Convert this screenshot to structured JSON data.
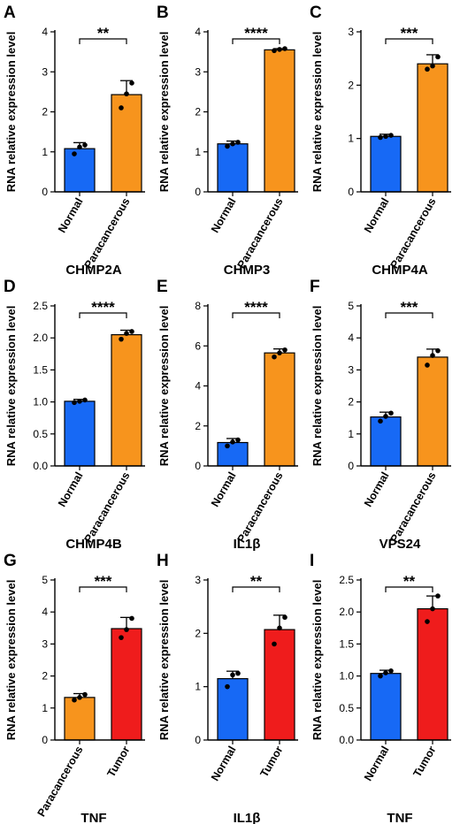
{
  "colors": {
    "Normal": "#1769f5",
    "Paracancerous": "#f7941d",
    "Tumor": "#ef1c1c"
  },
  "chart_data": [
    {
      "letter": "A",
      "type": "bar",
      "title": "CHMP2A",
      "ylabel": "RNA relative expression level",
      "ylim": [
        0,
        4
      ],
      "yticks": [
        0,
        1,
        2,
        3,
        4
      ],
      "tick_decimals": 0,
      "categories": [
        "Normal",
        "Paracancerous"
      ],
      "values": [
        1.08,
        2.43
      ],
      "errors": [
        0.15,
        0.35
      ],
      "points": [
        [
          0.95,
          1.12,
          1.17
        ],
        [
          2.1,
          2.45,
          2.72
        ]
      ],
      "significance": "**"
    },
    {
      "letter": "B",
      "type": "bar",
      "title": "CHMP3",
      "ylabel": "RNA relative expression level",
      "ylim": [
        0,
        4
      ],
      "yticks": [
        0,
        1,
        2,
        3,
        4
      ],
      "tick_decimals": 0,
      "categories": [
        "Normal",
        "Paracancerous"
      ],
      "values": [
        1.2,
        3.55
      ],
      "errors": [
        0.07,
        0.03
      ],
      "points": [
        [
          1.14,
          1.2,
          1.24
        ],
        [
          3.53,
          3.56,
          3.58
        ]
      ],
      "significance": "****"
    },
    {
      "letter": "C",
      "type": "bar",
      "title": "CHMP4A",
      "ylabel": "RNA relative expression level",
      "ylim": [
        0,
        3
      ],
      "yticks": [
        0,
        1,
        2,
        3
      ],
      "tick_decimals": 0,
      "categories": [
        "Normal",
        "Paracancerous"
      ],
      "values": [
        1.04,
        2.4
      ],
      "errors": [
        0.04,
        0.17
      ],
      "points": [
        [
          1.02,
          1.04,
          1.06
        ],
        [
          2.3,
          2.36,
          2.53
        ]
      ],
      "significance": "***"
    },
    {
      "letter": "D",
      "type": "bar",
      "title": "CHMP4B",
      "ylabel": "RNA relative expression level",
      "ylim": [
        0,
        2.5
      ],
      "yticks": [
        0,
        0.5,
        1.0,
        1.5,
        2.0,
        2.5
      ],
      "tick_decimals": 1,
      "categories": [
        "Normal",
        "Paracancerous"
      ],
      "values": [
        1.01,
        2.05
      ],
      "errors": [
        0.03,
        0.07
      ],
      "points": [
        [
          0.99,
          1.01,
          1.03
        ],
        [
          1.98,
          2.07,
          2.1
        ]
      ],
      "significance": "****"
    },
    {
      "letter": "E",
      "type": "bar",
      "title": "IL1β",
      "ylabel": "RNA relative expression level",
      "ylim": [
        0,
        8
      ],
      "yticks": [
        0,
        2,
        4,
        6,
        8
      ],
      "tick_decimals": 0,
      "categories": [
        "Normal",
        "Paracancerous"
      ],
      "values": [
        1.17,
        5.65
      ],
      "errors": [
        0.2,
        0.2
      ],
      "points": [
        [
          1.0,
          1.2,
          1.3
        ],
        [
          5.45,
          5.65,
          5.8
        ]
      ],
      "significance": "****"
    },
    {
      "letter": "F",
      "type": "bar",
      "title": "VPS24",
      "ylabel": "RNA relative expression level",
      "ylim": [
        0,
        5
      ],
      "yticks": [
        0,
        1,
        2,
        3,
        4,
        5
      ],
      "tick_decimals": 0,
      "categories": [
        "Normal",
        "Paracancerous"
      ],
      "values": [
        1.53,
        3.4
      ],
      "errors": [
        0.15,
        0.25
      ],
      "points": [
        [
          1.4,
          1.55,
          1.65
        ],
        [
          3.15,
          3.45,
          3.6
        ]
      ],
      "significance": "***"
    },
    {
      "letter": "G",
      "type": "bar",
      "title": "TNF",
      "ylabel": "RNA relative expression level",
      "ylim": [
        0,
        5
      ],
      "yticks": [
        0,
        1,
        2,
        3,
        4,
        5
      ],
      "tick_decimals": 0,
      "categories": [
        "Paracancerous",
        "Tumor"
      ],
      "values": [
        1.33,
        3.48
      ],
      "errors": [
        0.12,
        0.35
      ],
      "points": [
        [
          1.25,
          1.33,
          1.42
        ],
        [
          3.2,
          3.45,
          3.8
        ]
      ],
      "significance": "***"
    },
    {
      "letter": "H",
      "type": "bar",
      "title": "IL1β",
      "ylabel": "RNA relative expression level",
      "ylim": [
        0,
        3
      ],
      "yticks": [
        0,
        1,
        2,
        3
      ],
      "tick_decimals": 0,
      "categories": [
        "Normal",
        "Tumor"
      ],
      "values": [
        1.15,
        2.07
      ],
      "errors": [
        0.14,
        0.27
      ],
      "points": [
        [
          1.0,
          1.22,
          1.25
        ],
        [
          1.8,
          2.1,
          2.3
        ]
      ],
      "significance": "**"
    },
    {
      "letter": "I",
      "type": "bar",
      "title": "TNF",
      "ylabel": "RNA relative expression level",
      "ylim": [
        0,
        2.5
      ],
      "yticks": [
        0,
        0.5,
        1.0,
        1.5,
        2.0,
        2.5
      ],
      "tick_decimals": 1,
      "categories": [
        "Normal",
        "Tumor"
      ],
      "values": [
        1.04,
        2.05
      ],
      "errors": [
        0.05,
        0.2
      ],
      "points": [
        [
          1.0,
          1.05,
          1.08
        ],
        [
          1.85,
          2.05,
          2.25
        ]
      ],
      "significance": "**"
    }
  ]
}
